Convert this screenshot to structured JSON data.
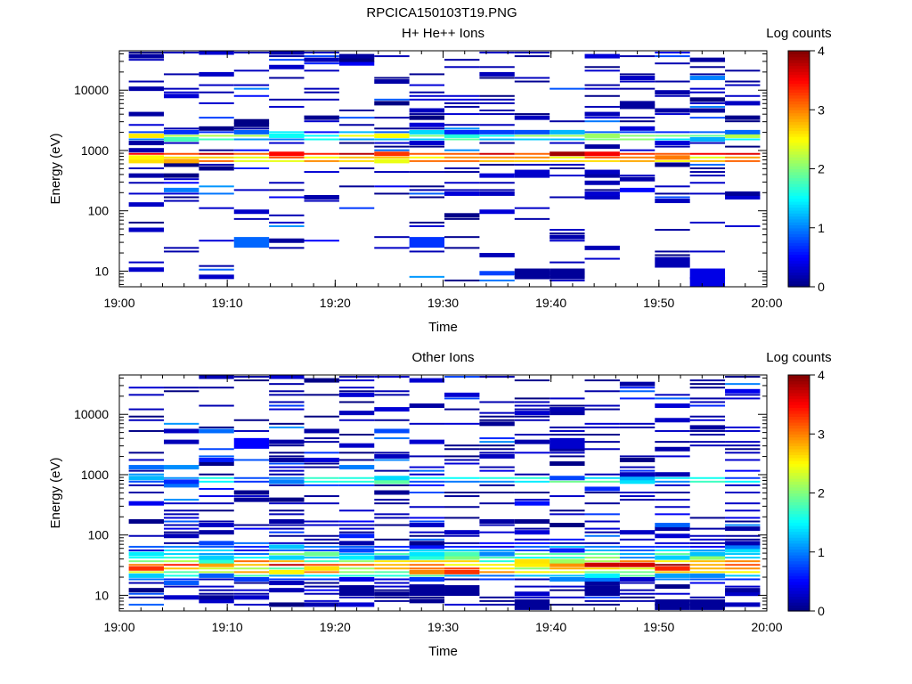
{
  "figure": {
    "title": "RPCICA150103T19.PNG"
  },
  "chart_data": [
    {
      "type": "heatmap",
      "title": "H+ He++ Ions",
      "xlabel": "Time",
      "ylabel": "Energy (eV)",
      "x_ticks": [
        "19:00",
        "19:10",
        "19:20",
        "19:30",
        "19:40",
        "19:50",
        "20:00"
      ],
      "x_range": [
        "19:00",
        "20:00"
      ],
      "y_scale": "log",
      "y_range": [
        5.5,
        45000
      ],
      "y_ticks": [
        10,
        100,
        1000,
        10000
      ],
      "colorbar": {
        "label": "Log counts",
        "range": [
          0,
          4
        ],
        "ticks": [
          0,
          1,
          2,
          3,
          4
        ],
        "colormap": "jet"
      },
      "grid": false,
      "time_bins": [
        "19:02:30",
        "19:05:45",
        "19:09:00",
        "19:12:15",
        "19:15:30",
        "19:18:45",
        "19:22:00",
        "19:25:15",
        "19:28:30",
        "19:31:45",
        "19:35:00",
        "19:38:15",
        "19:41:30",
        "19:44:45",
        "19:48:00",
        "19:51:15",
        "19:54:30",
        "19:57:45"
      ],
      "seed": 11,
      "low_energy_extra": 0,
      "bands": [
        {
          "energy": 840,
          "level": 3.5,
          "spread": 0.4
        },
        {
          "energy": 720,
          "level": 2.8,
          "spread": 0.4
        },
        {
          "energy": 640,
          "level": 2.0,
          "spread": 0.5
        },
        {
          "energy": 1700,
          "level": 2.0,
          "spread": 0.6
        },
        {
          "energy": 1500,
          "level": 1.5,
          "spread": 0.6
        },
        {
          "energy": 1950,
          "level": 1.0,
          "spread": 0.5
        }
      ],
      "patches": [
        {
          "bin": 3,
          "energy": 30,
          "level": 0.9
        },
        {
          "bin": 8,
          "energy": 30,
          "level": 0.7
        },
        {
          "bin": 11,
          "energy": 9,
          "level": 0.1
        },
        {
          "bin": 12,
          "energy": 9,
          "level": 0.1
        },
        {
          "bin": 15,
          "energy": 14,
          "level": 0.2
        },
        {
          "bin": 16,
          "energy": 9,
          "level": 0.4
        },
        {
          "bin": 16,
          "energy": 6.5,
          "level": 0.4
        }
      ]
    },
    {
      "type": "heatmap",
      "title": "Other Ions",
      "xlabel": "Time",
      "ylabel": "Energy (eV)",
      "x_ticks": [
        "19:00",
        "19:10",
        "19:20",
        "19:30",
        "19:40",
        "19:50",
        "20:00"
      ],
      "x_range": [
        "19:00",
        "20:00"
      ],
      "y_scale": "log",
      "y_range": [
        5.5,
        45000
      ],
      "y_ticks": [
        10,
        100,
        1000,
        10000
      ],
      "colorbar": {
        "label": "Log counts",
        "range": [
          0,
          4
        ],
        "ticks": [
          0,
          1,
          2,
          3,
          4
        ],
        "colormap": "jet"
      },
      "grid": false,
      "time_bins": [
        "19:02:30",
        "19:05:45",
        "19:09:00",
        "19:12:15",
        "19:15:30",
        "19:18:45",
        "19:22:00",
        "19:25:15",
        "19:28:30",
        "19:31:45",
        "19:35:00",
        "19:38:15",
        "19:41:30",
        "19:44:45",
        "19:48:00",
        "19:51:15",
        "19:54:30",
        "19:57:45"
      ],
      "seed": 29,
      "low_energy_extra": 10,
      "bands": [
        {
          "energy": 32,
          "level": 3.2,
          "spread": 0.8
        },
        {
          "energy": 26,
          "level": 2.6,
          "spread": 0.8
        },
        {
          "energy": 38,
          "level": 2.3,
          "spread": 0.8
        },
        {
          "energy": 21,
          "level": 1.4,
          "spread": 0.6
        },
        {
          "energy": 45,
          "level": 1.5,
          "spread": 0.6
        },
        {
          "energy": 820,
          "level": 1.3,
          "spread": 0.7
        },
        {
          "energy": 60,
          "level": 0.9,
          "spread": 0.6
        },
        {
          "energy": 17.5,
          "level": 0.6,
          "spread": 0.5
        }
      ],
      "patches": [
        {
          "bin": 6,
          "energy": 12,
          "level": 0.1
        },
        {
          "bin": 8,
          "energy": 12,
          "level": 0.1
        },
        {
          "bin": 9,
          "energy": 12,
          "level": 0.1
        },
        {
          "bin": 11,
          "energy": 7,
          "level": 0.1
        },
        {
          "bin": 13,
          "energy": 12,
          "level": 0.1
        },
        {
          "bin": 15,
          "energy": 7,
          "level": 0.1
        },
        {
          "bin": 16,
          "energy": 7,
          "level": 0.1
        },
        {
          "bin": 12,
          "energy": 3300,
          "level": 0.3
        },
        {
          "bin": 3,
          "energy": 3300,
          "level": 0.5
        }
      ]
    }
  ]
}
